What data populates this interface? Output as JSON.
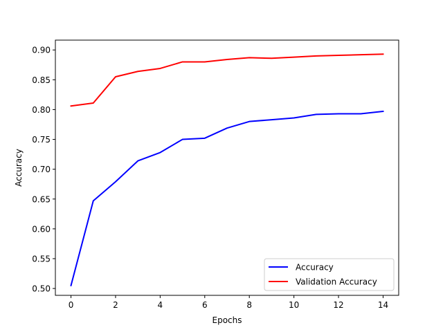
{
  "chart_data": {
    "type": "line",
    "title": "",
    "xlabel": "Epochs",
    "ylabel": "Accuracy",
    "xlim": [
      -0.7,
      14.7
    ],
    "ylim": [
      0.4885,
      0.9165
    ],
    "grid": false,
    "legend_placement": "lower-right",
    "x_ticks": [
      {
        "value": 0,
        "label": "0"
      },
      {
        "value": 2,
        "label": "2"
      },
      {
        "value": 4,
        "label": "4"
      },
      {
        "value": 6,
        "label": "6"
      },
      {
        "value": 8,
        "label": "8"
      },
      {
        "value": 10,
        "label": "10"
      },
      {
        "value": 12,
        "label": "12"
      },
      {
        "value": 14,
        "label": "14"
      }
    ],
    "y_ticks": [
      {
        "value": 0.5,
        "label": "0.50"
      },
      {
        "value": 0.55,
        "label": "0.55"
      },
      {
        "value": 0.6,
        "label": "0.60"
      },
      {
        "value": 0.65,
        "label": "0.65"
      },
      {
        "value": 0.7,
        "label": "0.70"
      },
      {
        "value": 0.75,
        "label": "0.75"
      },
      {
        "value": 0.8,
        "label": "0.80"
      },
      {
        "value": 0.85,
        "label": "0.85"
      },
      {
        "value": 0.9,
        "label": "0.90"
      }
    ],
    "x": [
      0,
      1,
      2,
      3,
      4,
      5,
      6,
      7,
      8,
      9,
      10,
      11,
      12,
      13,
      14
    ],
    "series": [
      {
        "name": "Accuracy",
        "color": "#0000ff",
        "values": [
          0.505,
          0.647,
          0.679,
          0.714,
          0.728,
          0.75,
          0.752,
          0.769,
          0.78,
          0.783,
          0.786,
          0.792,
          0.793,
          0.793,
          0.797
        ]
      },
      {
        "name": "Validation Accuracy",
        "color": "#ff0000",
        "values": [
          0.806,
          0.811,
          0.855,
          0.864,
          0.869,
          0.88,
          0.88,
          0.884,
          0.887,
          0.886,
          0.888,
          0.89,
          0.891,
          0.892,
          0.893
        ]
      }
    ]
  }
}
